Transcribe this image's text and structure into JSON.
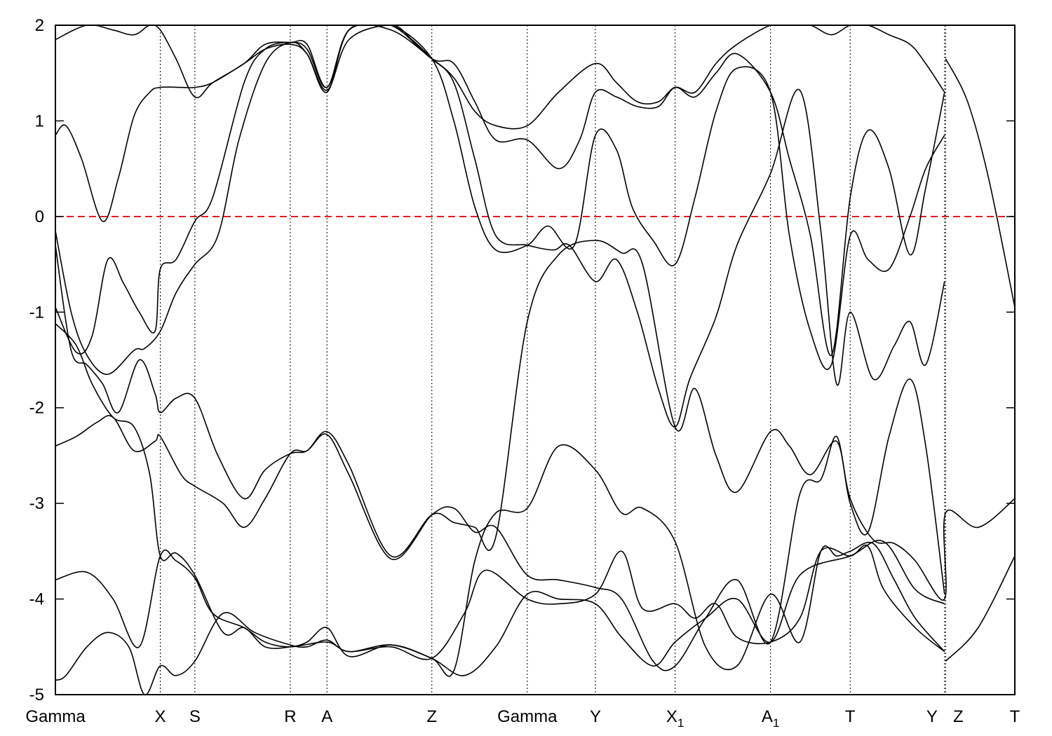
{
  "chart_data": {
    "type": "line",
    "title": "",
    "xlabel": "",
    "ylabel": "",
    "ylim": [
      -5,
      2
    ],
    "y_ticks": [
      2,
      1,
      0,
      -1,
      -2,
      -3,
      -4,
      -5
    ],
    "y_tick_labels": [
      "2",
      "1",
      "0",
      "-1",
      "-2",
      "-3",
      "-4",
      "-5"
    ],
    "fermi_level": 0,
    "fermi_color": "#dd0000",
    "line_color": "#000000",
    "grid": false,
    "kpath_positions": [
      0,
      1.0,
      1.33,
      2.24,
      2.59,
      3.59,
      4.5,
      5.15,
      5.91,
      6.82,
      7.58,
      8.48,
      8.49,
      9.15
    ],
    "kpath_labels": [
      {
        "name": "Gamma",
        "sub": ""
      },
      {
        "name": "X",
        "sub": ""
      },
      {
        "name": "S",
        "sub": ""
      },
      {
        "name": "R",
        "sub": ""
      },
      {
        "name": "A",
        "sub": ""
      },
      {
        "name": "Z",
        "sub": ""
      },
      {
        "name": "Gamma",
        "sub": ""
      },
      {
        "name": "Y",
        "sub": ""
      },
      {
        "name": "X",
        "sub": "1"
      },
      {
        "name": "A",
        "sub": "1"
      },
      {
        "name": "T",
        "sub": ""
      },
      {
        "name": "Y",
        "sub": ""
      },
      {
        "name": "Z",
        "sub": ""
      },
      {
        "name": "T",
        "sub": ""
      }
    ],
    "xlim": [
      0,
      9.15
    ],
    "bands": [
      {
        "x": [
          0,
          0.1,
          0.3,
          0.5,
          0.7,
          0.85,
          1.0,
          1.15,
          1.33,
          1.6,
          1.9,
          2.24,
          2.4,
          2.59,
          2.8,
          3.2,
          3.59,
          3.9,
          4.2,
          4.5,
          4.8,
          5.15,
          5.4,
          5.7,
          5.91,
          6.2,
          6.5,
          6.82,
          7.1,
          7.58,
          7.9,
          8.2,
          8.48
        ],
        "y": [
          -4.85,
          -4.8,
          -4.5,
          -4.35,
          -4.5,
          -5.0,
          -4.7,
          -4.8,
          -4.65,
          -4.15,
          -4.35,
          -4.48,
          -4.5,
          -4.43,
          -4.55,
          -4.48,
          -4.62,
          -4.8,
          -4.5,
          -3.95,
          -4.0,
          -4.05,
          -4.4,
          -4.7,
          -4.45,
          -4.2,
          -4.0,
          -4.45,
          -3.75,
          -3.55,
          -3.4,
          -3.9,
          -4.05
        ]
      },
      {
        "x": [
          0,
          0.3,
          0.55,
          0.8,
          1.0,
          1.15,
          1.33,
          1.5,
          1.8,
          2.0,
          2.24,
          2.59,
          2.8,
          3.2,
          3.59,
          3.9,
          4.1,
          4.5,
          4.8,
          5.15,
          5.4,
          5.6,
          5.91,
          6.1,
          6.3,
          6.5,
          6.82,
          7.1,
          7.3,
          7.58,
          7.75,
          7.9,
          8.2,
          8.48
        ],
        "y": [
          -3.8,
          -3.72,
          -4.0,
          -4.5,
          -3.55,
          -3.6,
          -3.78,
          -4.15,
          -4.3,
          -4.45,
          -4.5,
          -4.45,
          -4.55,
          -4.5,
          -4.62,
          -4.15,
          -3.7,
          -4.0,
          -4.05,
          -3.95,
          -3.5,
          -4.1,
          -4.05,
          -4.2,
          -4.05,
          -4.4,
          -4.45,
          -4.2,
          -3.5,
          -3.55,
          -3.45,
          -3.9,
          -4.3,
          -4.55
        ]
      },
      {
        "x": [
          0,
          0.2,
          0.4,
          0.55,
          0.75,
          0.95,
          1.0,
          1.2,
          1.33,
          1.6,
          1.8,
          2.0,
          2.24,
          2.4,
          2.59,
          2.8,
          3.2,
          3.59,
          3.8,
          4.0,
          4.2,
          4.5,
          4.8,
          5.15,
          5.4,
          5.7,
          5.91,
          6.2,
          6.5,
          6.82,
          7.1,
          7.3,
          7.45,
          7.58,
          7.8,
          8.0,
          8.2,
          8.48,
          8.49,
          8.8,
          9.15
        ],
        "y": [
          -2.4,
          -2.3,
          -2.15,
          -2.1,
          -2.45,
          -2.35,
          -2.3,
          -2.7,
          -2.82,
          -3.0,
          -3.25,
          -2.95,
          -2.48,
          -2.45,
          -2.28,
          -2.7,
          -3.58,
          -3.12,
          -3.05,
          -3.3,
          -3.25,
          -3.75,
          -3.8,
          -3.88,
          -4.0,
          -4.65,
          -4.7,
          -4.2,
          -3.8,
          -4.45,
          -2.9,
          -2.75,
          -2.3,
          -2.95,
          -3.38,
          -3.42,
          -3.6,
          -4.0,
          -3.1,
          -3.25,
          -2.95
        ]
      },
      {
        "x": [
          0,
          0.2,
          0.35,
          0.55,
          0.75,
          0.9,
          1.0,
          1.15,
          1.33,
          1.6,
          1.8,
          2.0,
          2.24,
          2.4,
          2.59,
          2.8,
          3.2,
          3.59,
          3.8,
          4.0,
          4.2,
          4.5,
          4.8,
          5.15,
          5.4,
          5.6,
          5.91,
          6.2,
          6.5,
          6.82,
          7.1,
          7.3,
          7.45,
          7.58,
          7.8,
          8.0,
          8.2,
          8.48
        ],
        "y": [
          -1.12,
          -1.35,
          -1.75,
          -2.1,
          -2.2,
          -2.7,
          -3.55,
          -3.52,
          -3.75,
          -4.35,
          -4.3,
          -4.5,
          -4.5,
          -4.45,
          -4.3,
          -4.6,
          -4.48,
          -4.62,
          -4.75,
          -3.6,
          -3.1,
          -3.05,
          -2.4,
          -2.65,
          -3.1,
          -3.05,
          -3.4,
          -4.5,
          -4.7,
          -3.95,
          -4.45,
          -3.5,
          -3.55,
          -3.5,
          -3.42,
          -3.8,
          -4.2,
          -4.55
        ]
      },
      {
        "x": [
          0,
          0.15,
          0.3,
          0.45,
          0.6,
          0.8,
          0.95,
          1.0,
          1.15,
          1.33,
          1.55,
          1.8,
          2.0,
          2.24,
          2.4,
          2.59,
          2.8,
          3.2,
          3.59,
          3.8,
          4.0,
          4.2,
          4.5,
          4.8,
          5.15,
          5.4,
          5.6,
          5.91,
          6.1,
          6.3,
          6.5,
          6.82,
          7.0,
          7.2,
          7.45,
          7.58,
          7.75,
          7.95,
          8.15,
          8.3,
          8.48
        ],
        "y": [
          -0.3,
          -1.4,
          -1.55,
          -1.75,
          -2.05,
          -1.5,
          -1.85,
          -2.05,
          -1.9,
          -1.9,
          -2.5,
          -2.95,
          -2.65,
          -2.48,
          -2.45,
          -2.25,
          -2.6,
          -3.55,
          -3.12,
          -3.2,
          -3.25,
          -3.35,
          -1.1,
          -0.4,
          -0.25,
          -0.38,
          -0.5,
          -2.2,
          -1.8,
          -2.5,
          -2.88,
          -2.25,
          -2.4,
          -2.7,
          -2.35,
          -3.0,
          -3.3,
          -2.3,
          -1.7,
          -2.4,
          -3.95
        ]
      },
      {
        "x": [
          0,
          0.15,
          0.3,
          0.5,
          0.75,
          0.85,
          1.0,
          1.15,
          1.33,
          1.55,
          1.75,
          2.0,
          2.24,
          2.4,
          2.59,
          2.8,
          3.2,
          3.4,
          3.59,
          3.8,
          4.0,
          4.2,
          4.5,
          4.75,
          4.9,
          5.15,
          5.35,
          5.55,
          5.75,
          5.91,
          6.05,
          6.3,
          6.5,
          6.82,
          7.1,
          7.3,
          7.45,
          7.58,
          7.8,
          8.0,
          8.15,
          8.3,
          8.48
        ],
        "y": [
          -0.15,
          -1.0,
          -1.45,
          -1.65,
          -1.4,
          -1.38,
          -1.2,
          -0.8,
          -0.5,
          -0.2,
          0.8,
          1.6,
          1.82,
          1.7,
          1.32,
          1.85,
          2.0,
          1.85,
          1.65,
          1.4,
          0.6,
          -0.2,
          -0.3,
          -0.35,
          -0.3,
          -0.68,
          -0.45,
          -1.0,
          -1.8,
          -2.2,
          -1.7,
          -1.05,
          -0.3,
          0.45,
          1.32,
          -0.15,
          -1.75,
          -1.0,
          -1.7,
          -1.35,
          -1.1,
          -1.55,
          -0.68
        ]
      },
      {
        "x": [
          0,
          0.2,
          0.35,
          0.5,
          0.65,
          0.8,
          0.95,
          1.0,
          1.15,
          1.33,
          1.5,
          1.8,
          2.0,
          2.24,
          2.4,
          2.59,
          2.8,
          3.2,
          3.59,
          3.8,
          4.0,
          4.2,
          4.5,
          4.7,
          4.95,
          5.15,
          5.35,
          5.5,
          5.7,
          5.91,
          6.1,
          6.3,
          6.5,
          6.82,
          7.0,
          7.2,
          7.4,
          7.58,
          7.75,
          7.95,
          8.15,
          8.3,
          8.48
        ],
        "y": [
          -0.95,
          -1.42,
          -1.25,
          -0.45,
          -0.7,
          -1.0,
          -1.2,
          -0.55,
          -0.45,
          -0.05,
          0.2,
          1.4,
          1.75,
          1.82,
          1.75,
          1.35,
          1.95,
          2.0,
          1.65,
          1.0,
          0.1,
          -0.35,
          -0.3,
          -0.1,
          -0.3,
          0.85,
          0.7,
          0.1,
          -0.25,
          -0.5,
          0.2,
          1.1,
          1.55,
          1.3,
          -0.2,
          -1.2,
          -1.55,
          -0.2,
          -0.45,
          -0.55,
          0.0,
          0.5,
          0.85
        ]
      },
      {
        "x": [
          0,
          0.1,
          0.25,
          0.45,
          0.6,
          0.75,
          0.9,
          1.0,
          1.2,
          1.33,
          1.5,
          1.8,
          2.0,
          2.24,
          2.4,
          2.59,
          2.8,
          3.2,
          3.59,
          3.8,
          4.0,
          4.2,
          4.5,
          4.8,
          5.0,
          5.15,
          5.35,
          5.55,
          5.75,
          5.91,
          6.1,
          6.3,
          6.5,
          6.82,
          7.0,
          7.2,
          7.4,
          7.58,
          7.75,
          7.95,
          8.15,
          8.3,
          8.48
        ],
        "y": [
          0.85,
          0.95,
          0.6,
          -0.05,
          0.4,
          1.05,
          1.3,
          1.35,
          1.35,
          1.35,
          1.4,
          1.6,
          1.75,
          1.8,
          1.7,
          1.3,
          1.95,
          2.0,
          1.65,
          1.6,
          1.2,
          0.8,
          0.8,
          0.5,
          0.8,
          1.3,
          1.25,
          1.15,
          1.15,
          1.35,
          1.25,
          1.5,
          1.7,
          1.3,
          0.6,
          -0.2,
          -1.45,
          0.2,
          0.9,
          0.5,
          -0.4,
          0.3,
          1.3
        ]
      },
      {
        "x": [
          0,
          0.3,
          0.55,
          0.75,
          0.9,
          1.0,
          1.15,
          1.33,
          1.5,
          1.8,
          2.0,
          2.24,
          2.4,
          2.59,
          2.8,
          3.2,
          3.59,
          3.8,
          4.0,
          4.2,
          4.5,
          4.8,
          5.15,
          5.35,
          5.55,
          5.75,
          5.91,
          6.1,
          6.3,
          6.5,
          6.82,
          7.0,
          7.2,
          7.4,
          7.58,
          7.75,
          7.95,
          8.15,
          8.3,
          8.48
        ],
        "y": [
          1.85,
          2.0,
          1.95,
          1.9,
          2.0,
          1.95,
          1.65,
          1.25,
          1.4,
          1.6,
          1.8,
          1.82,
          1.8,
          1.35,
          1.95,
          1.95,
          1.65,
          1.45,
          1.1,
          0.95,
          0.95,
          1.3,
          1.6,
          1.4,
          1.2,
          1.2,
          1.35,
          1.3,
          1.6,
          1.8,
          2.0,
          2.0,
          2.0,
          1.9,
          2.0,
          2.0,
          1.9,
          1.8,
          1.6,
          1.3
        ]
      },
      {
        "x": [
          8.49,
          8.7,
          8.9,
          9.15
        ],
        "y": [
          1.65,
          1.2,
          0.4,
          -0.95
        ]
      },
      {
        "x": [
          8.49,
          8.8,
          9.15
        ],
        "y": [
          -4.65,
          -4.3,
          -3.55
        ]
      }
    ]
  }
}
